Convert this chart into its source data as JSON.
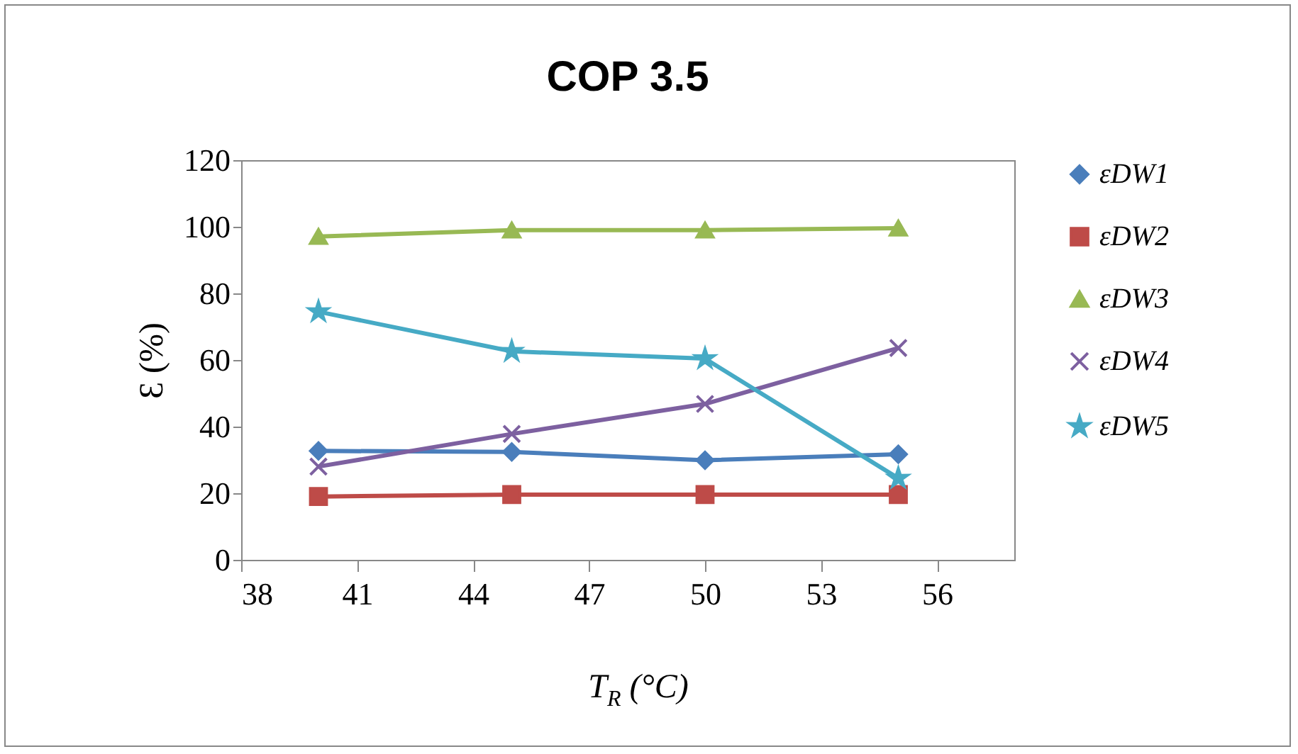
{
  "chart_data": {
    "type": "line",
    "title": "COP 3.5",
    "xlabel": "T$_{R}$ (°C)",
    "ylabel": "Ɛ (%)",
    "x": [
      40,
      45,
      50,
      55
    ],
    "xlim": [
      38,
      58
    ],
    "xticks": [
      38,
      41,
      44,
      47,
      50,
      53,
      56
    ],
    "ylim": [
      0,
      120
    ],
    "yticks": [
      0,
      20,
      40,
      60,
      80,
      100,
      120
    ],
    "grid": false,
    "legend": "right",
    "line_style": "solid",
    "series": [
      {
        "name": "εDW1",
        "color": "#4a7ebb",
        "marker": "diamond",
        "values": [
          32.7,
          32.4,
          29.9,
          31.7
        ]
      },
      {
        "name": "εDW2",
        "color": "#be4b48",
        "marker": "square",
        "values": [
          19,
          19.6,
          19.6,
          19.6
        ]
      },
      {
        "name": "εDW3",
        "color": "#98b954",
        "marker": "triangle",
        "values": [
          97.1,
          99,
          99,
          99.6
        ]
      },
      {
        "name": "εDW4",
        "color": "#7d60a0",
        "marker": "cross",
        "values": [
          28,
          37.8,
          46.8,
          63.6
        ]
      },
      {
        "name": "εDW5",
        "color": "#46aac5",
        "marker": "star",
        "values": [
          74.5,
          62.6,
          60.4,
          24.5
        ]
      }
    ]
  }
}
